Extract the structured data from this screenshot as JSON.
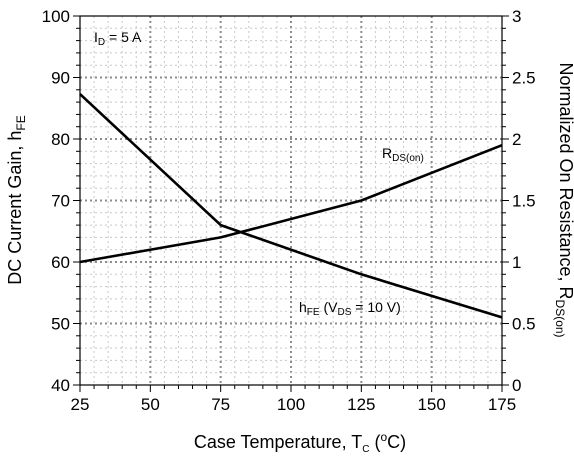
{
  "chart_data": {
    "type": "line",
    "xlabel": {
      "main": "Case Temperature, T",
      "sub": "C",
      "unit_open": " (",
      "unit_sup": "o",
      "unit_close": "C)"
    },
    "ylabel_left": {
      "main": "DC Current Gain, h",
      "sub": "FE"
    },
    "ylabel_right": {
      "main": "Normalized On Resistance, R",
      "sub": "DS(on)"
    },
    "xlim": [
      25,
      175
    ],
    "ylim_left": [
      40,
      100
    ],
    "ylim_right": [
      0,
      3
    ],
    "x_ticks": [
      "25",
      "50",
      "75",
      "100",
      "125",
      "150",
      "175"
    ],
    "y_left_ticks": [
      "40",
      "50",
      "60",
      "70",
      "80",
      "90",
      "100"
    ],
    "y_right_ticks": [
      "0",
      "0.5",
      "1",
      "1.5",
      "2",
      "2.5",
      "3"
    ],
    "grid": true,
    "annotations": {
      "condition": {
        "main": "I",
        "sub": "D",
        "rest": " = 5 A"
      },
      "rds_label": {
        "main": "R",
        "sub": "DS(on)"
      },
      "hfe_label": {
        "main": "h",
        "sub": "FE",
        "rest1": " (V",
        "sub2": "DS",
        "rest2": " = 10 V)"
      }
    },
    "series": [
      {
        "name": "hFE",
        "axis": "left",
        "points": [
          [
            25,
            87.3
          ],
          [
            75,
            66
          ],
          [
            125,
            58
          ],
          [
            175,
            51
          ]
        ]
      },
      {
        "name": "RDS(on)",
        "axis": "right",
        "points": [
          [
            25,
            1.0
          ],
          [
            75,
            1.2
          ],
          [
            125,
            1.5
          ],
          [
            175,
            1.95
          ]
        ]
      }
    ]
  }
}
